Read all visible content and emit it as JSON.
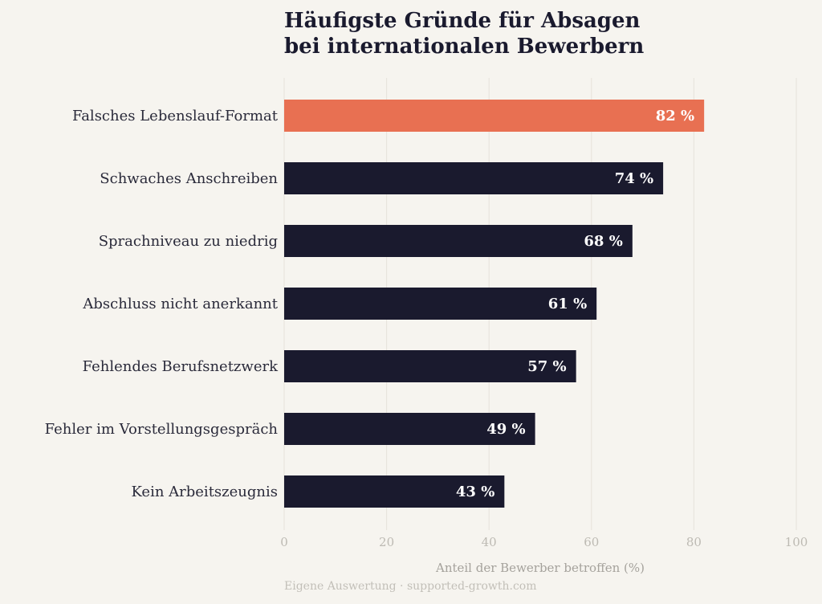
{
  "chart_data": {
    "type": "bar",
    "orientation": "horizontal",
    "title_lines": [
      "Häufigste Gründe für Absagen",
      "bei internationalen Bewerbern"
    ],
    "categories": [
      "Falsches Lebenslauf-Format",
      "Schwaches Anschreiben",
      "Sprachniveau zu niedrig",
      "Abschluss nicht anerkannt",
      "Fehlendes Berufsnetzwerk",
      "Fehler im Vorstellungsgespräch",
      "Kein Arbeitszeugnis"
    ],
    "values": [
      82,
      74,
      68,
      61,
      57,
      49,
      43
    ],
    "value_labels": [
      "82 %",
      "74 %",
      "68 %",
      "61 %",
      "57 %",
      "49 %",
      "43 %"
    ],
    "highlight_index": 0,
    "xlabel": "Anteil der Bewerber betroffen (%)",
    "xlim": [
      0,
      100
    ],
    "xticks": [
      0,
      20,
      40,
      60,
      80,
      100
    ],
    "grid": "vertical",
    "source": "Eigene Auswertung · supported-growth.com",
    "colors": {
      "bar": "#1a1a2e",
      "highlight": "#e87052",
      "background": "#f6f4ef",
      "grid": "#e6e2db"
    }
  }
}
